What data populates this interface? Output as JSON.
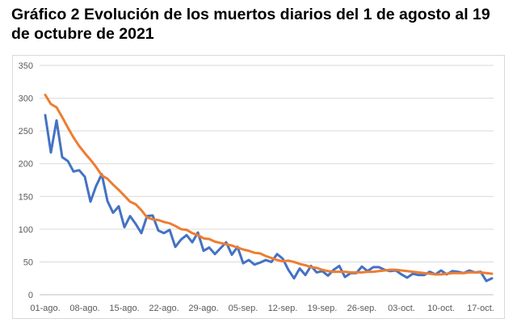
{
  "title": "Gráfico 2 Evolución de los muertos diarios del 1 de agosto al 19 de octubre de 2021",
  "chart_data": {
    "type": "line",
    "title": "",
    "xlabel": "",
    "ylabel": "",
    "ylim": [
      0,
      350
    ],
    "yticks": [
      0,
      50,
      100,
      150,
      200,
      250,
      300,
      350
    ],
    "grid": "horizontal",
    "legend": "none",
    "x_tick_labels": [
      "01-ago.",
      "08-ago.",
      "15-ago.",
      "22-ago.",
      "29-ago.",
      "05-sep.",
      "12-sep.",
      "19-sep.",
      "26-sep.",
      "03-oct.",
      "10-oct.",
      "17-oct."
    ],
    "n_days": 80,
    "series": [
      {
        "color": "#4472c4",
        "values": [
          274,
          217,
          266,
          210,
          204,
          188,
          190,
          180,
          142,
          166,
          184,
          143,
          125,
          135,
          103,
          120,
          108,
          94,
          120,
          121,
          98,
          94,
          99,
          73,
          84,
          91,
          80,
          95,
          67,
          72,
          62,
          71,
          80,
          61,
          73,
          48,
          53,
          46,
          49,
          53,
          50,
          62,
          55,
          38,
          25,
          40,
          30,
          44,
          34,
          36,
          29,
          38,
          44,
          27,
          33,
          33,
          43,
          36,
          42,
          42,
          38,
          36,
          37,
          31,
          26,
          32,
          30,
          30,
          35,
          31,
          37,
          31,
          36,
          35,
          33,
          37,
          34,
          35,
          21,
          25
        ]
      },
      {
        "color": "#ed7d31",
        "values": [
          305,
          291,
          286,
          271,
          255,
          240,
          227,
          216,
          206,
          195,
          182,
          177,
          168,
          160,
          151,
          142,
          138,
          129,
          118,
          115,
          114,
          111,
          109,
          105,
          100,
          99,
          94,
          91,
          86,
          85,
          81,
          79,
          77,
          75,
          72,
          69,
          67,
          64,
          63,
          59,
          56,
          53,
          51,
          52,
          50,
          47,
          45,
          42,
          41,
          38,
          36,
          35,
          35,
          35,
          34,
          34,
          34,
          35,
          35,
          36,
          37,
          38,
          38,
          37,
          36,
          35,
          34,
          33,
          32,
          31,
          31,
          32,
          33,
          33,
          33,
          34,
          34,
          34,
          33,
          32
        ]
      }
    ]
  }
}
